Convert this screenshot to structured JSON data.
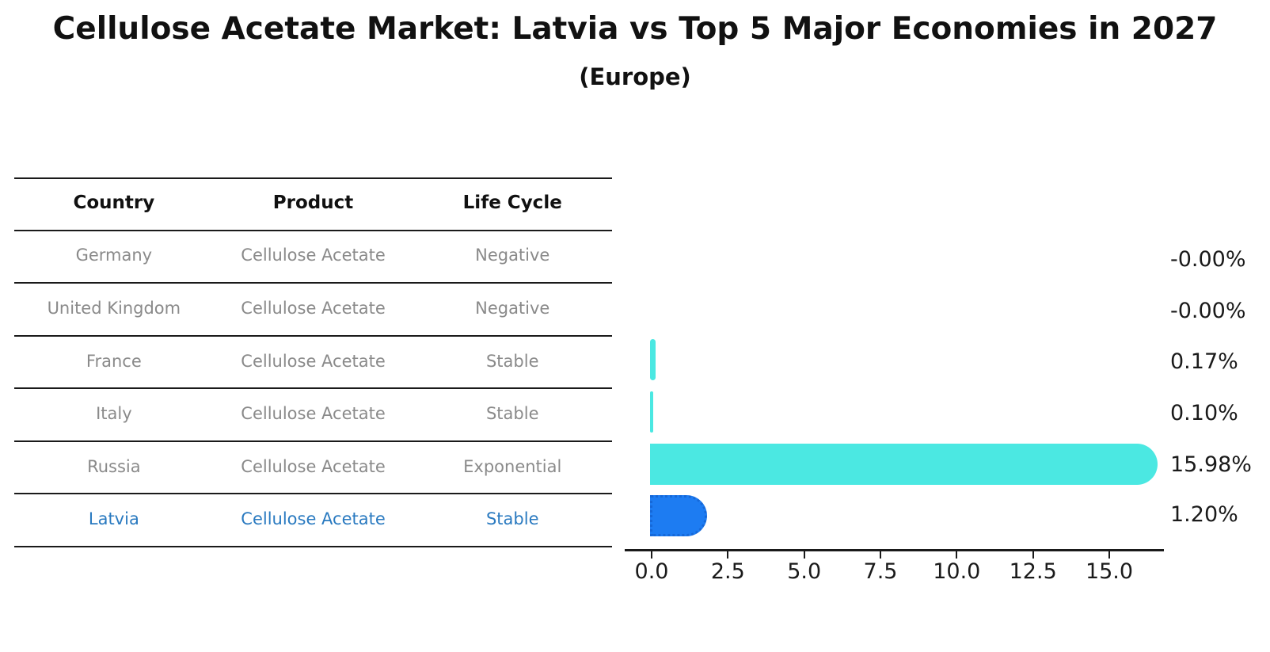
{
  "title": "Cellulose Acetate Market: Latvia vs Top 5 Major Economies in 2027",
  "subtitle": "(Europe)",
  "table": {
    "headers": [
      "Country",
      "Product",
      "Life Cycle"
    ],
    "rows": [
      {
        "country": "Germany",
        "product": "Cellulose Acetate",
        "life_cycle": "Negative",
        "highlight": false
      },
      {
        "country": "United Kingdom",
        "product": "Cellulose Acetate",
        "life_cycle": "Negative",
        "highlight": false
      },
      {
        "country": "France",
        "product": "Cellulose Acetate",
        "life_cycle": "Stable",
        "highlight": false
      },
      {
        "country": "Italy",
        "product": "Cellulose Acetate",
        "life_cycle": "Stable",
        "highlight": false
      },
      {
        "country": "Russia",
        "product": "Cellulose Acetate",
        "life_cycle": "Exponential",
        "highlight": false
      },
      {
        "country": "Latvia",
        "product": "Cellulose Acetate",
        "life_cycle": "Stable",
        "highlight": true
      }
    ]
  },
  "chart_data": {
    "type": "bar",
    "orientation": "horizontal",
    "title": "Cellulose Acetate Market: Latvia vs Top 5 Major Economies in 2027",
    "subtitle": "(Europe)",
    "categories": [
      "Germany",
      "United Kingdom",
      "France",
      "Italy",
      "Russia",
      "Latvia"
    ],
    "values": [
      -0.0,
      -0.0,
      0.17,
      0.1,
      15.98,
      1.2
    ],
    "value_labels": [
      "-0.00%",
      "-0.00%",
      "0.17%",
      "0.10%",
      "15.98%",
      "1.20%"
    ],
    "x_ticks": [
      "0.0",
      "2.5",
      "5.0",
      "7.5",
      "10.0",
      "12.5",
      "15.0"
    ],
    "xlim": [
      0.0,
      16.9
    ],
    "grid": false,
    "legend": false,
    "bar_color": "#4be8e2",
    "highlight_color": "#1d7cf2",
    "highlight_index": 5,
    "highlight_text_color": "#2a7ac0",
    "xlabel": "",
    "ylabel": ""
  }
}
